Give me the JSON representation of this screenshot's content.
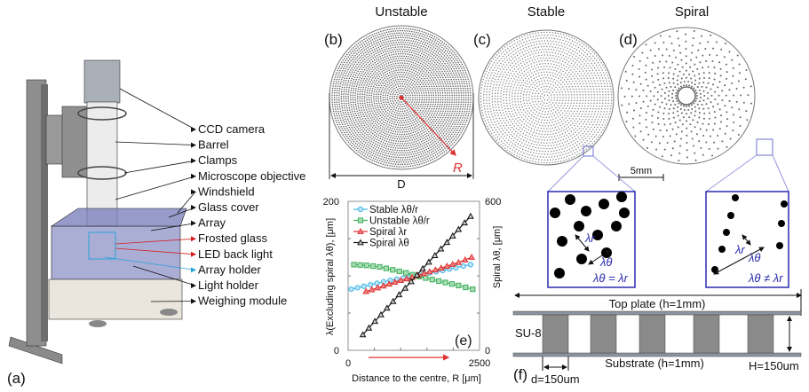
{
  "panel_a": {
    "label": "(a)",
    "components": [
      "CCD camera",
      "Barrel",
      "Clamps",
      "Microscope objective",
      "Windshield",
      "Glass cover",
      "Array",
      "Frosted glass",
      "LED back light",
      "Array holder",
      "Light holder",
      "Weighing module"
    ],
    "arrow_colors": [
      "#111111",
      "#111111",
      "#111111",
      "#111111",
      "#111111",
      "#111111",
      "#111111",
      "#d62020",
      "#d62020",
      "#29a3d6",
      "#111111",
      "#111111"
    ]
  },
  "panel_b": {
    "label": "(b)",
    "title": "Unstable",
    "diameter_label": "D",
    "radius_label": "R"
  },
  "panel_c": {
    "label": "(c)",
    "title": "Stable",
    "inset_relation": "λθ = λr",
    "lambda_r": "λr",
    "lambda_theta": "λθ"
  },
  "panel_d": {
    "label": "(d)",
    "title": "Spiral",
    "scale_bar": "5mm",
    "inset_relation": "λθ ≠ λr",
    "lambda_r": "λr",
    "lambda_theta": "λθ"
  },
  "panel_f": {
    "label": "(f)",
    "top_plate": "Top plate (h=1mm)",
    "substrate": "Substrate (h=1mm)",
    "material": "SU-8",
    "height": "H=150um",
    "diameter": "d=150um"
  },
  "colors": {
    "stable": "#3fb6e6",
    "unstable": "#3cb05a",
    "spiral_r": "#e03030",
    "spiral_theta": "#111111",
    "inset_border": "#2b2bb0"
  },
  "chart_data": {
    "type": "line",
    "panel_label": "(e)",
    "xlabel": "Distance to the centre, R [μm]",
    "ylabel": "λ(Excluding spiral λθ), [μm]",
    "ylabel_right": "Spiral λθ, [μm]",
    "xlim": [
      0,
      2500
    ],
    "ylim": [
      0,
      200
    ],
    "ylim_right": [
      0,
      600
    ],
    "x_ticks": [
      "0",
      "2500"
    ],
    "y_ticks": [
      "0",
      "200"
    ],
    "y_ticks_right": [
      "0",
      "600"
    ],
    "legend_position": "top-left",
    "grid": false,
    "series": [
      {
        "name": "Stable λθ/r",
        "axis": "left",
        "marker": "circle",
        "x": [
          60,
          300,
          550,
          800,
          1050,
          1300,
          1550,
          1800,
          2050,
          2330
        ],
        "y": [
          82,
          86,
          90,
          94,
          97,
          100,
          104,
          107,
          111,
          115
        ]
      },
      {
        "name": "Unstable λθ/r",
        "axis": "left",
        "marker": "square",
        "x": [
          110,
          350,
          600,
          850,
          1100,
          1350,
          1600,
          1850,
          2100,
          2370
        ],
        "y": [
          115,
          114,
          112,
          108,
          104,
          99,
          95,
          91,
          87,
          82
        ]
      },
      {
        "name": "Spiral λr",
        "axis": "left",
        "marker": "triangle",
        "x": [
          340,
          560,
          780,
          1000,
          1220,
          1440,
          1660,
          1880,
          2100,
          2350
        ],
        "y": [
          79,
          84,
          89,
          94,
          98,
          103,
          108,
          113,
          118,
          125
        ]
      },
      {
        "name": "Spiral λθ",
        "axis": "right",
        "marker": "triangle",
        "x": [
          280,
          510,
          740,
          970,
          1200,
          1420,
          1650,
          1880,
          2100,
          2330
        ],
        "y": [
          63,
          117,
          170,
          224,
          277,
          329,
          382,
          435,
          487,
          540
        ]
      }
    ]
  }
}
